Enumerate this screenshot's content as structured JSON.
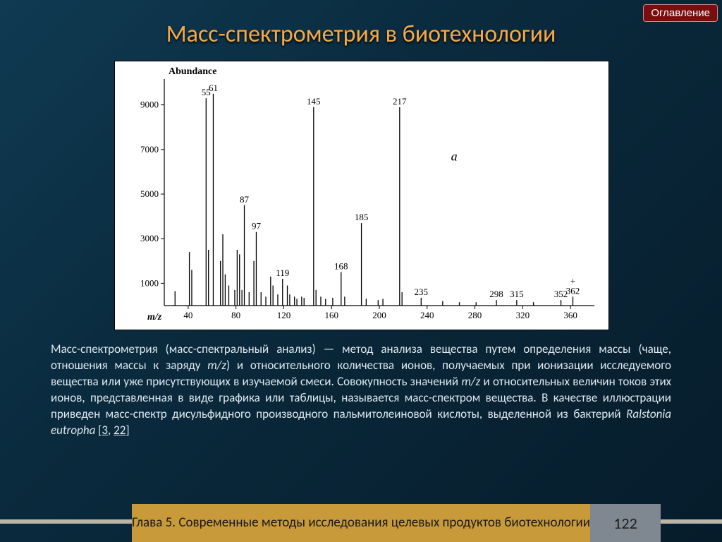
{
  "nav": {
    "toc_label": "Оглавление"
  },
  "title": "Масс-спектрометрия в биотехнологии",
  "chart": {
    "type": "mass-spectrum",
    "y_label": "Abundance",
    "x_label": "m/z",
    "panel_id": "a",
    "background_color": "#ffffff",
    "line_color": "#000000",
    "label_fontsize": 13,
    "xlim": [
      20,
      380
    ],
    "ylim": [
      0,
      10000
    ],
    "x_ticks": [
      40,
      80,
      120,
      160,
      200,
      240,
      280,
      320,
      360
    ],
    "y_ticks": [
      1000,
      3000,
      5000,
      7000,
      9000
    ],
    "peaks": [
      {
        "mz": 29,
        "abund": 650
      },
      {
        "mz": 41,
        "abund": 2400
      },
      {
        "mz": 43,
        "abund": 1600
      },
      {
        "mz": 55,
        "abund": 9300,
        "label": "55",
        "label_italic": true
      },
      {
        "mz": 57,
        "abund": 2500
      },
      {
        "mz": 61,
        "abund": 9500,
        "label": "61"
      },
      {
        "mz": 67,
        "abund": 2000
      },
      {
        "mz": 69,
        "abund": 3200
      },
      {
        "mz": 71,
        "abund": 1400
      },
      {
        "mz": 74,
        "abund": 900
      },
      {
        "mz": 79,
        "abund": 700
      },
      {
        "mz": 81,
        "abund": 2500
      },
      {
        "mz": 83,
        "abund": 2300
      },
      {
        "mz": 85,
        "abund": 700
      },
      {
        "mz": 87,
        "abund": 4500,
        "label": "87"
      },
      {
        "mz": 91,
        "abund": 600
      },
      {
        "mz": 95,
        "abund": 2000
      },
      {
        "mz": 97,
        "abund": 3300,
        "label": "97"
      },
      {
        "mz": 101,
        "abund": 600
      },
      {
        "mz": 105,
        "abund": 400
      },
      {
        "mz": 109,
        "abund": 1300
      },
      {
        "mz": 111,
        "abund": 900
      },
      {
        "mz": 115,
        "abund": 500
      },
      {
        "mz": 119,
        "abund": 1200,
        "label": "119"
      },
      {
        "mz": 123,
        "abund": 900
      },
      {
        "mz": 125,
        "abund": 500
      },
      {
        "mz": 129,
        "abund": 400
      },
      {
        "mz": 131,
        "abund": 300
      },
      {
        "mz": 135,
        "abund": 400
      },
      {
        "mz": 137,
        "abund": 350
      },
      {
        "mz": 145,
        "abund": 8900,
        "label": "145",
        "bold": true
      },
      {
        "mz": 147,
        "abund": 700
      },
      {
        "mz": 151,
        "abund": 400
      },
      {
        "mz": 155,
        "abund": 300
      },
      {
        "mz": 161,
        "abund": 350
      },
      {
        "mz": 168,
        "abund": 1500,
        "label": "168"
      },
      {
        "mz": 171,
        "abund": 400
      },
      {
        "mz": 185,
        "abund": 3700,
        "label": "185"
      },
      {
        "mz": 189,
        "abund": 300
      },
      {
        "mz": 199,
        "abund": 250
      },
      {
        "mz": 203,
        "abund": 300
      },
      {
        "mz": 217,
        "abund": 8900,
        "label": "217",
        "bold": true
      },
      {
        "mz": 219,
        "abund": 600
      },
      {
        "mz": 235,
        "abund": 350,
        "label": "235"
      },
      {
        "mz": 253,
        "abund": 200
      },
      {
        "mz": 267,
        "abund": 150
      },
      {
        "mz": 281,
        "abund": 150
      },
      {
        "mz": 298,
        "abund": 250,
        "label": "298"
      },
      {
        "mz": 315,
        "abund": 250,
        "label": "315"
      },
      {
        "mz": 329,
        "abund": 150
      },
      {
        "mz": 352,
        "abund": 250,
        "label": "352"
      },
      {
        "mz": 362,
        "abund": 400,
        "label": "362",
        "cross": true
      }
    ]
  },
  "description": {
    "lead": "Масс-спектрометрия (масс-спектральный анализ)",
    "body1": " — метод анализа вещества путем определения массы (чаще, отношения массы к заряду ",
    "mz": "m/z",
    "body2": ") и относительного количества ионов, получаемых при ионизации исследуемого вещества или уже присутствующих в изучаемой смеси. Совокупность значений ",
    "body3": " и относительных величин токов этих ионов, представленная в виде графика или таблицы, называется масс-спектром вещества. В качестве иллюстрации приведен масс-спектр дисульфидного производного пальмитолеиновой кислоты, выделенной из бактерий ",
    "species": "Ralstonia eutropha",
    "ref_open": " [",
    "ref1": "3",
    "ref_sep": ", ",
    "ref2": "22",
    "ref_close": "]"
  },
  "footer": {
    "chapter": "Глава 5. Современные методы исследования целевых продуктов биотехнологии",
    "page": "122"
  }
}
